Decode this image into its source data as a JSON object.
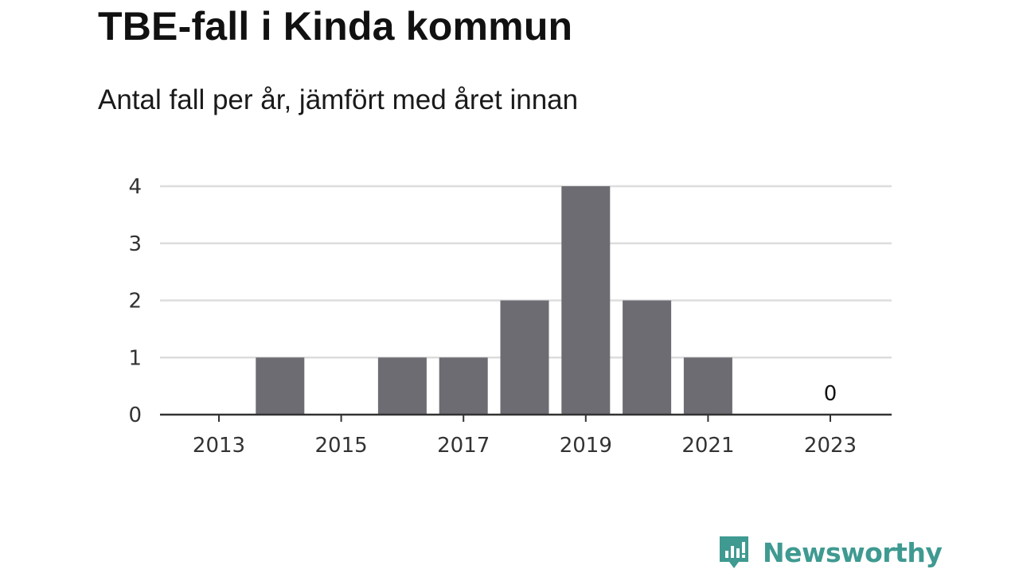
{
  "title": "TBE-fall i Kinda kommun",
  "subtitle": "Antal fall per år, jämfört med året innan",
  "brand": {
    "name": "Newsworthy",
    "icon": "newsworthy-logo-icon",
    "color": "#3f9a91"
  },
  "chart_data": {
    "type": "bar",
    "x": [
      2013,
      2014,
      2015,
      2016,
      2017,
      2018,
      2019,
      2020,
      2021,
      2022,
      2023
    ],
    "values": [
      0,
      1,
      0,
      1,
      1,
      2,
      4,
      2,
      1,
      0,
      0
    ],
    "x_tick_labels": [
      "2013",
      "2015",
      "2017",
      "2019",
      "2021",
      "2023"
    ],
    "y_tick_labels": [
      "0",
      "1",
      "2",
      "3",
      "4"
    ],
    "ylim": [
      0,
      4
    ],
    "grid": true,
    "bar_color": "#6d6c72",
    "grid_color": "#dddddd",
    "axis_color": "#333333",
    "annotations": [
      {
        "x": 2023,
        "y": 0,
        "text": "0"
      }
    ],
    "xlabel": "",
    "ylabel": ""
  }
}
